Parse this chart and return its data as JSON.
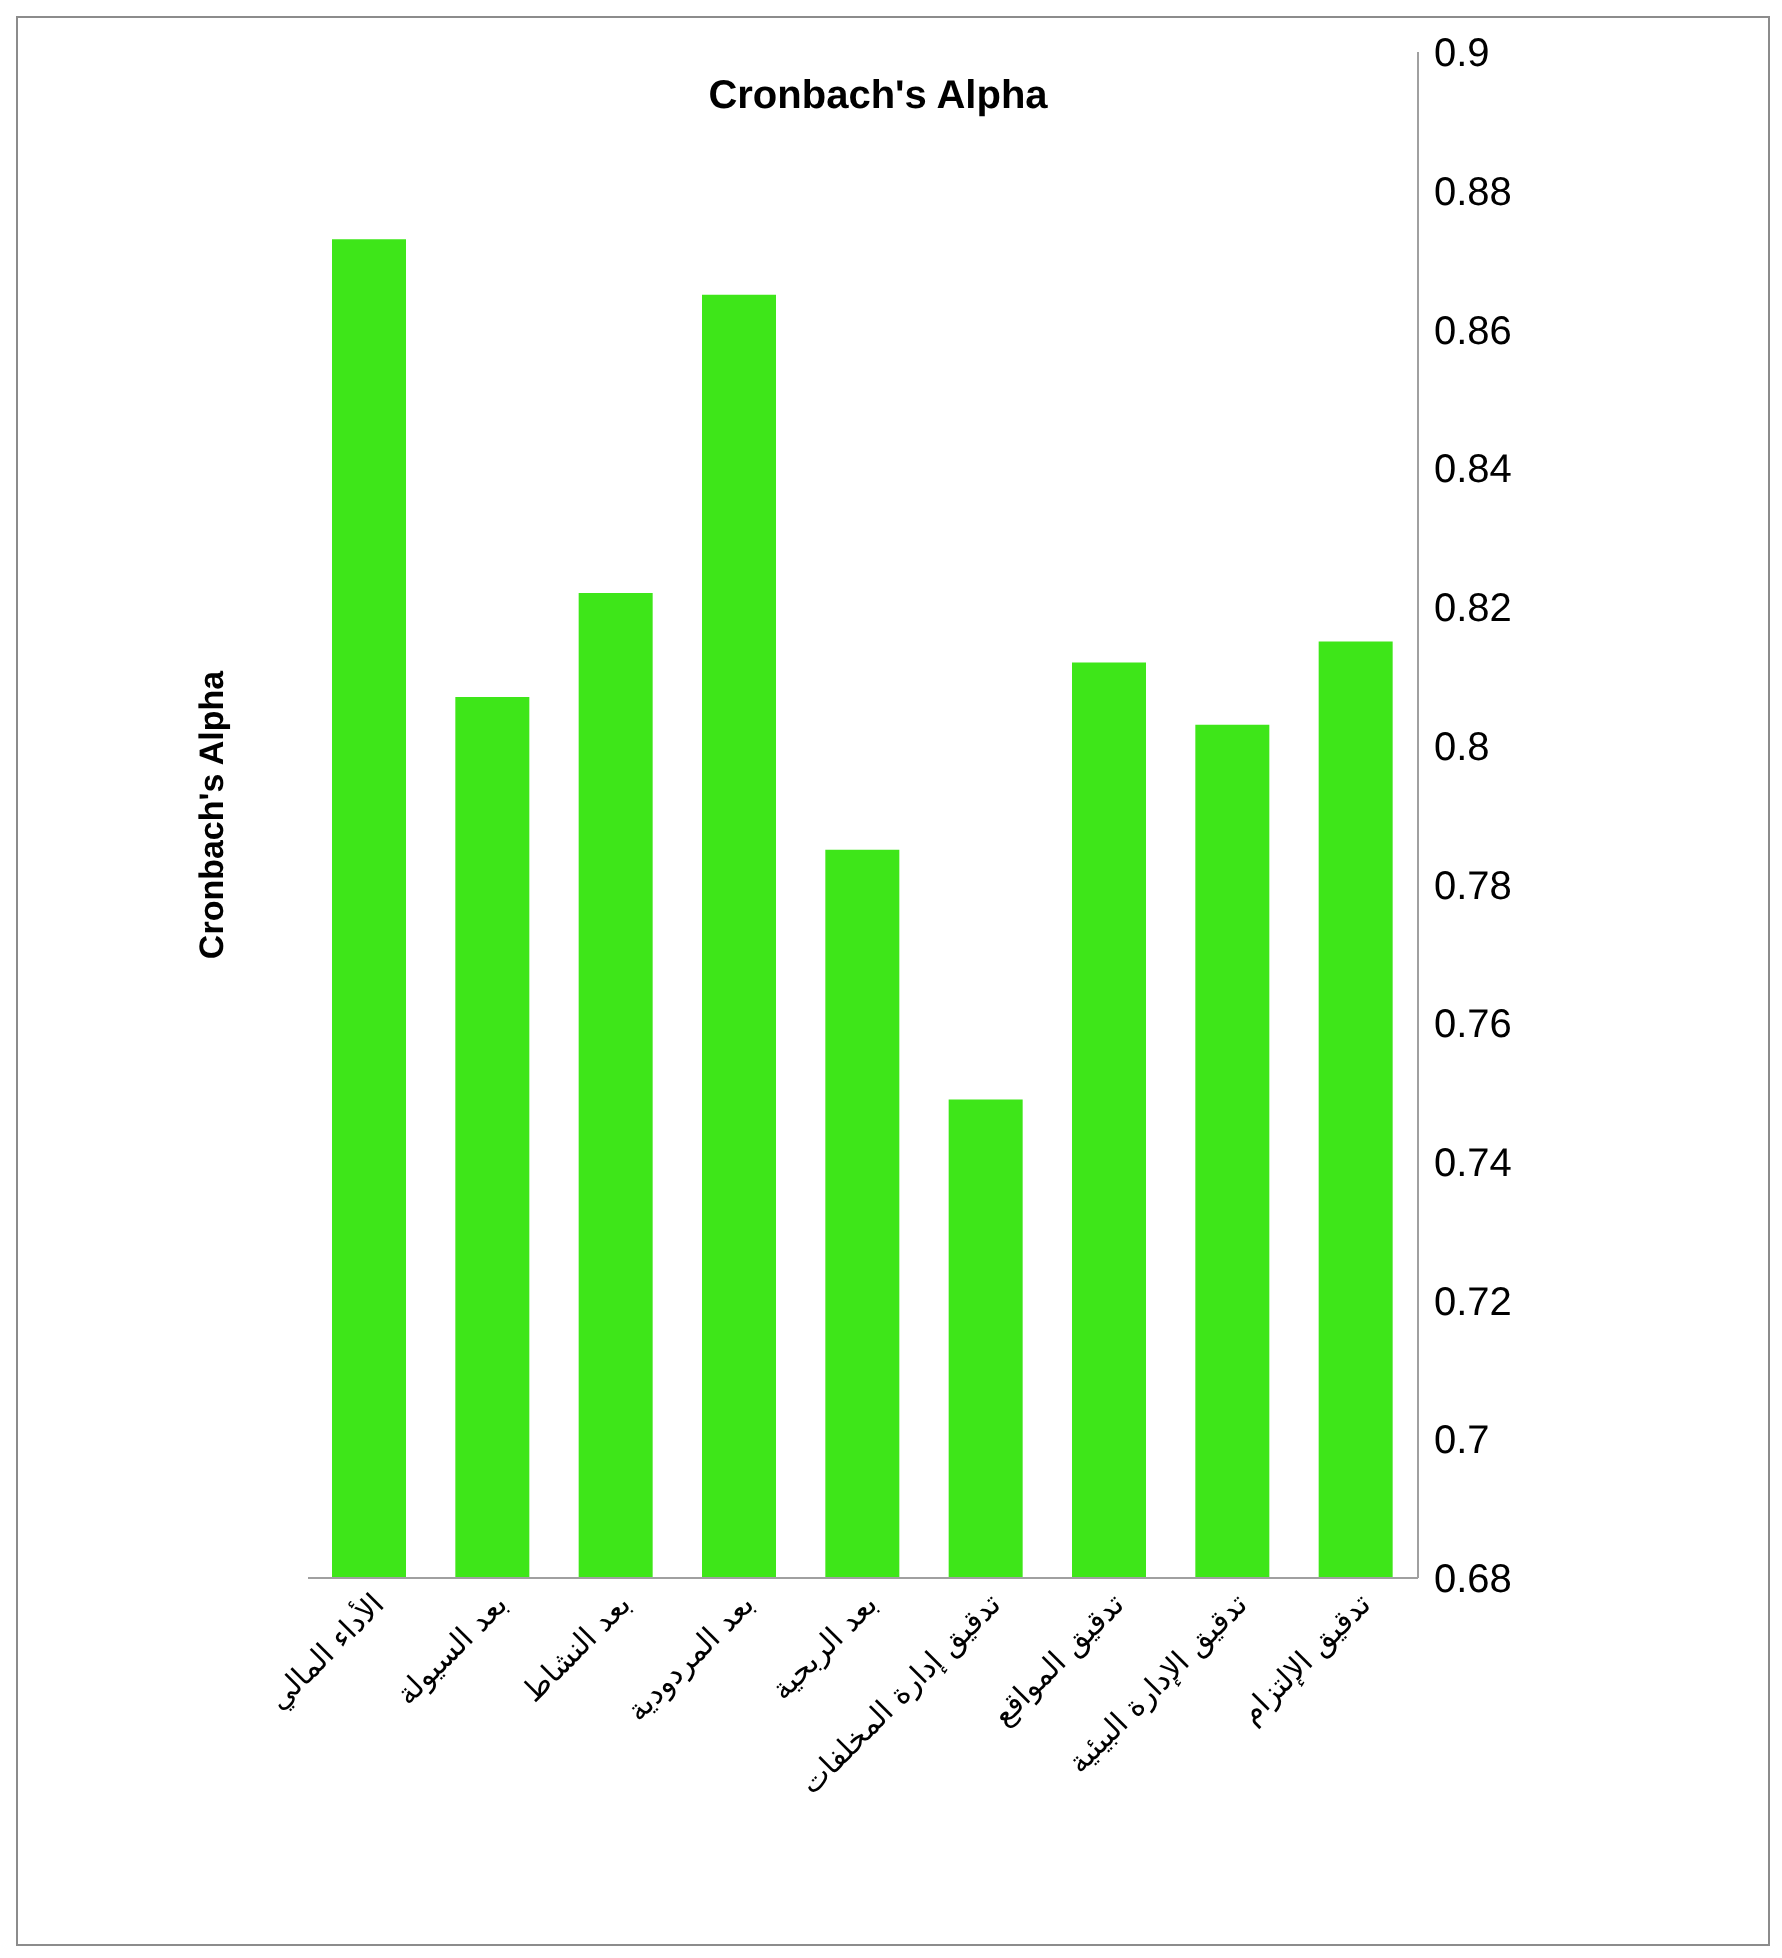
{
  "chart_data": {
    "type": "bar",
    "title": "Cronbach's Alpha",
    "ylabel": "Cronbach's Alpha",
    "categories": [
      "الأداء المالي",
      "بعد السيولة",
      "بعد النشاط",
      "بعد المردودية",
      "بعد الربحية",
      "تدقيق إدارة المخلفات",
      "تدقيق المواقع",
      "تدقيق الإدارة البيئية",
      "تدقيق الإلتزام"
    ],
    "values": [
      0.873,
      0.807,
      0.822,
      0.865,
      0.785,
      0.749,
      0.812,
      0.803,
      0.815
    ],
    "color": "#3ee619",
    "ylim": [
      0.68,
      0.9
    ],
    "yticks": [
      0.68,
      0.7,
      0.72,
      0.74,
      0.76,
      0.78,
      0.8,
      0.82,
      0.84,
      0.86,
      0.88,
      0.9
    ],
    "grid": false,
    "legend": false
  }
}
